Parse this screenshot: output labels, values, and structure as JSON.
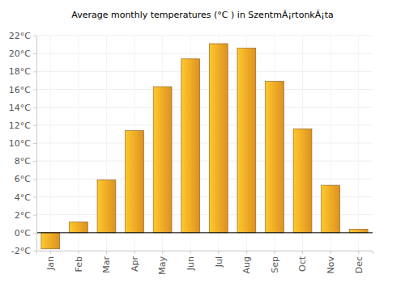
{
  "chart_data": {
    "type": "bar",
    "title": "Average monthly temperatures (°C ) in SzentmÃ¡rtonkÃ¡ta",
    "categories": [
      "Jan",
      "Feb",
      "Mar",
      "Apr",
      "May",
      "Jun",
      "Jul",
      "Aug",
      "Sep",
      "Oct",
      "Nov",
      "Dec"
    ],
    "values": [
      -1.8,
      1.2,
      5.9,
      11.4,
      16.3,
      19.4,
      21.1,
      20.6,
      16.9,
      11.6,
      5.3,
      0.4
    ],
    "color": "#ffa726",
    "ylim": [
      -2,
      22
    ],
    "yticks": [
      {
        "value": -2,
        "label": "-2°C"
      },
      {
        "value": 0,
        "label": "0°C"
      },
      {
        "value": 2,
        "label": "2°C"
      },
      {
        "value": 4,
        "label": "4°C"
      },
      {
        "value": 6,
        "label": "6°C"
      },
      {
        "value": 8,
        "label": "8°C"
      },
      {
        "value": 10,
        "label": "10°C"
      },
      {
        "value": 12,
        "label": "12°C"
      },
      {
        "value": 14,
        "label": "14°C"
      },
      {
        "value": 16,
        "label": "16°C"
      },
      {
        "value": 18,
        "label": "18°C"
      },
      {
        "value": 20,
        "label": "20°C"
      },
      {
        "value": 22,
        "label": "22°C"
      }
    ],
    "grid": true
  }
}
